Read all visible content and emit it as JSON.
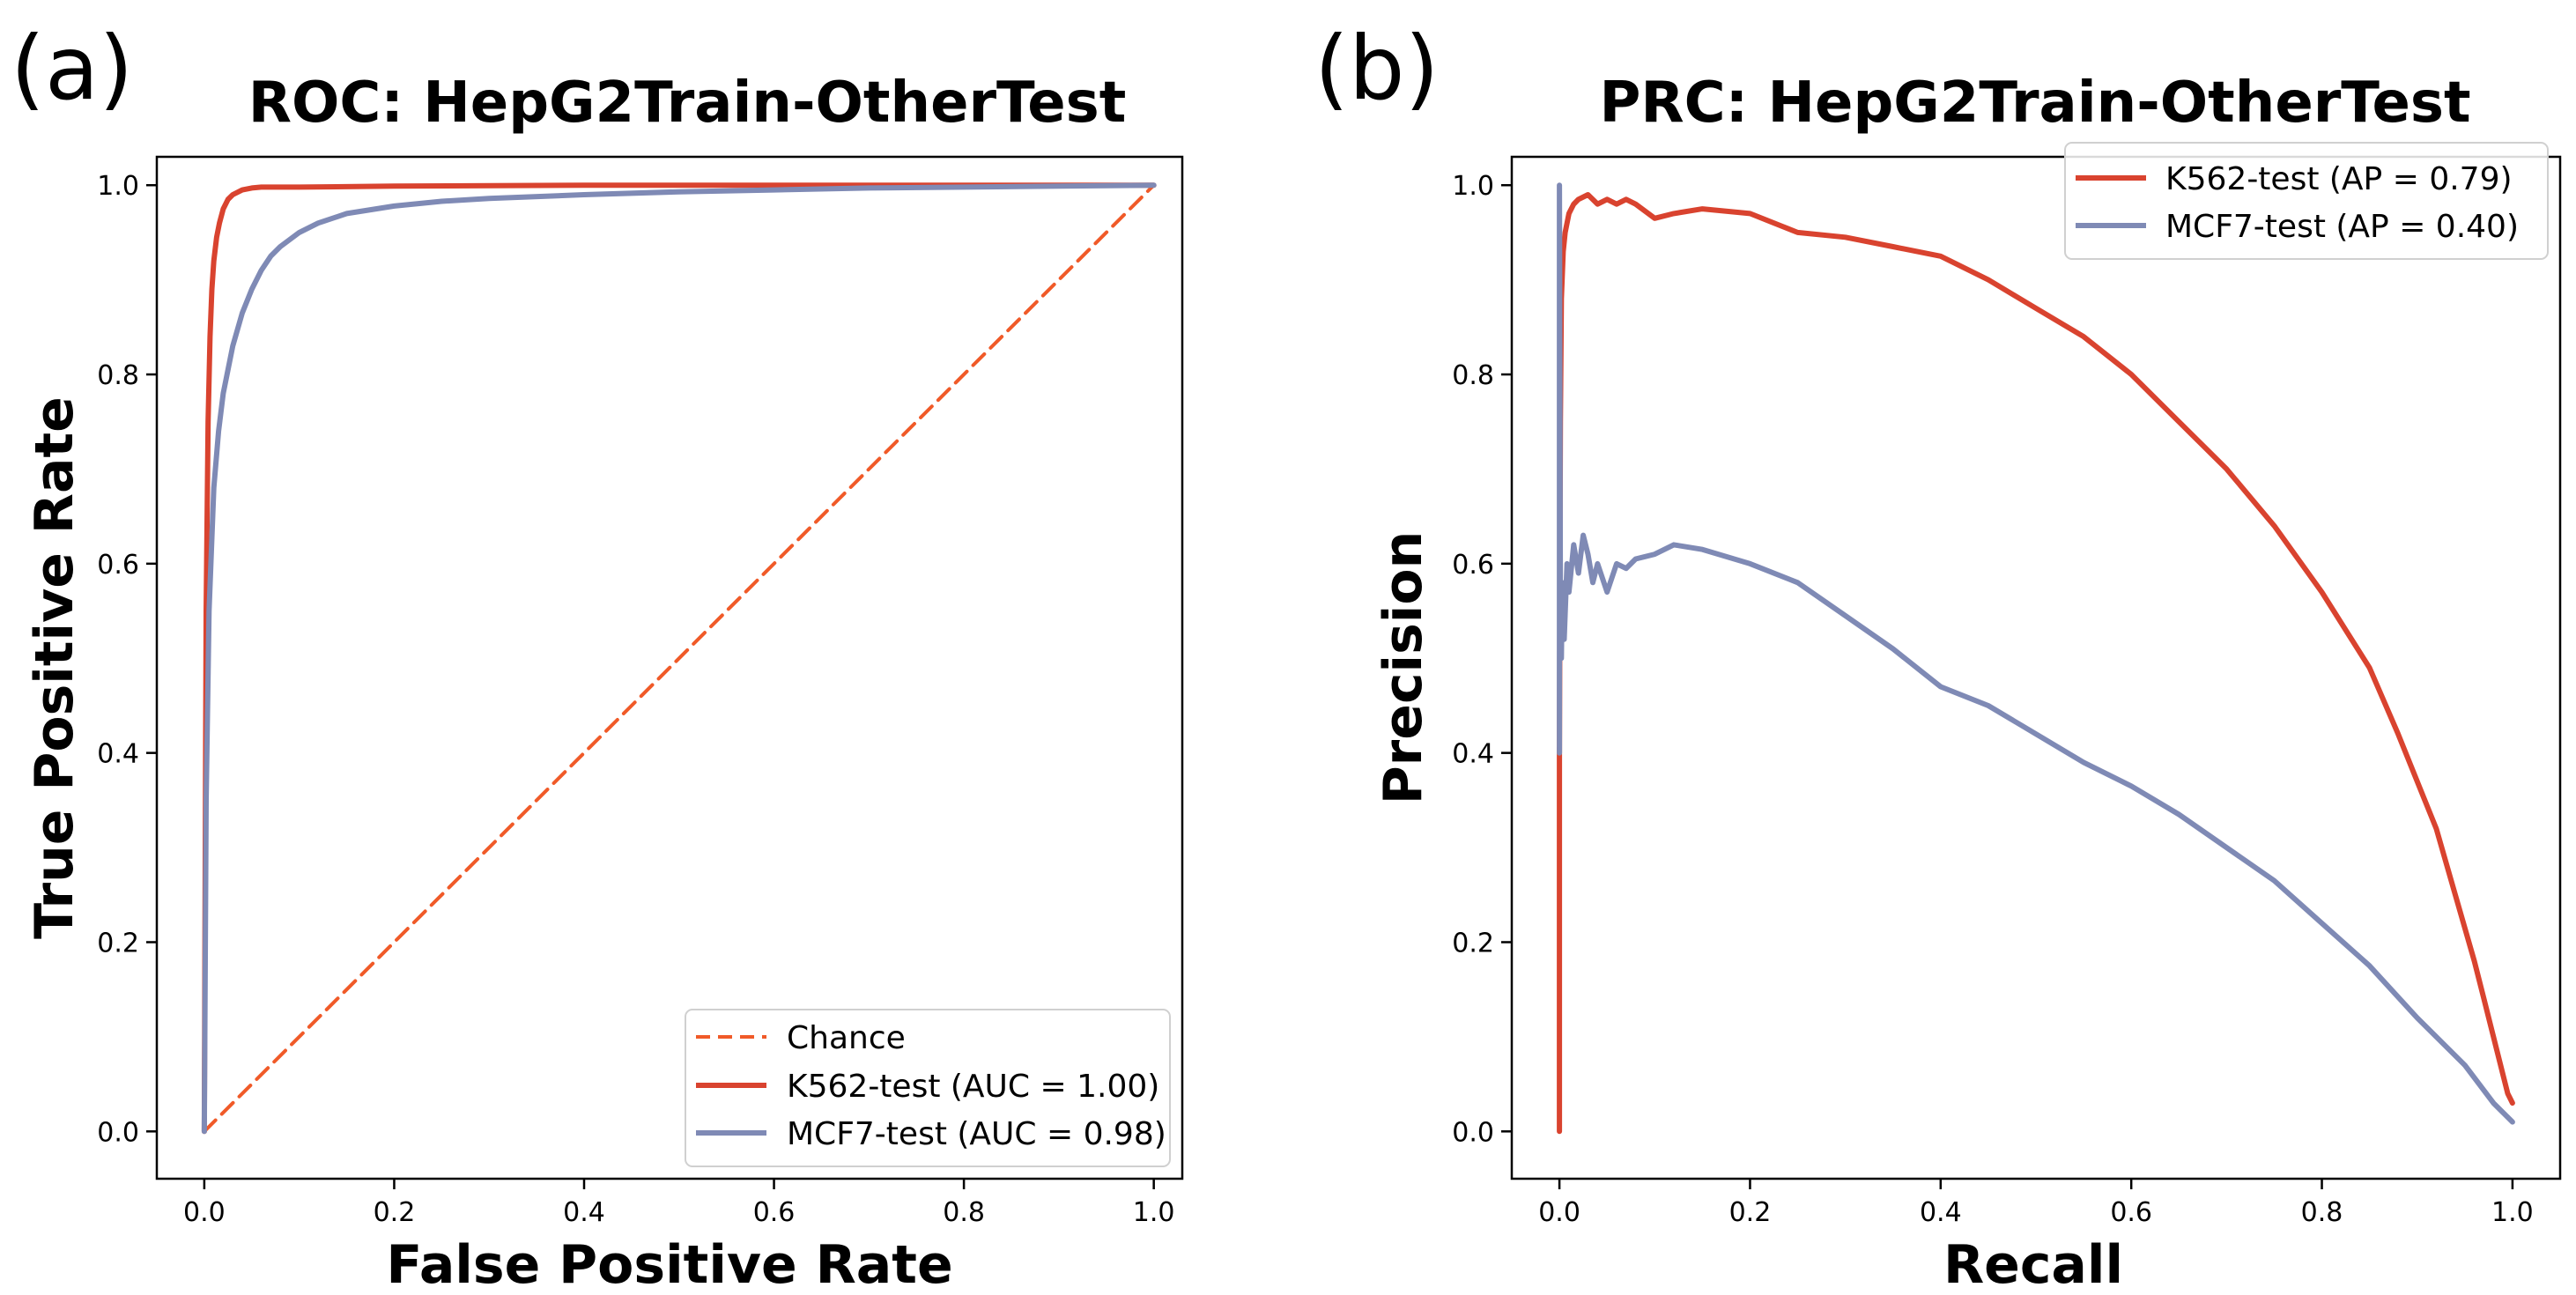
{
  "chart_data": [
    {
      "type": "line",
      "panel_label": "(a)",
      "title": "ROC: HepG2Train-OtherTest",
      "xlabel": "False Positive Rate",
      "ylabel": "True Positive Rate",
      "xlim": [
        -0.05,
        1.03
      ],
      "ylim": [
        -0.05,
        1.03
      ],
      "xticks": [
        0.0,
        0.2,
        0.4,
        0.6,
        0.8,
        1.0
      ],
      "yticks": [
        0.0,
        0.2,
        0.4,
        0.6,
        0.8,
        1.0
      ],
      "xtick_labels": [
        "0.0",
        "0.2",
        "0.4",
        "0.6",
        "0.8",
        "1.0"
      ],
      "ytick_labels": [
        "0.0",
        "0.2",
        "0.4",
        "0.6",
        "0.8",
        "1.0"
      ],
      "grid": false,
      "legend_position": "lower-right",
      "series": [
        {
          "name": "Chance",
          "color": "#f05a28",
          "dashed": true,
          "x": [
            0,
            1
          ],
          "y": [
            0,
            1
          ]
        },
        {
          "name": "K562-test (AUC = 1.00)",
          "color": "#d9432f",
          "dashed": false,
          "x": [
            0,
            0.001,
            0.002,
            0.004,
            0.006,
            0.008,
            0.01,
            0.013,
            0.016,
            0.02,
            0.025,
            0.03,
            0.04,
            0.05,
            0.06,
            0.08,
            0.1,
            0.2,
            0.4,
            0.6,
            0.8,
            1.0
          ],
          "y": [
            0,
            0.3,
            0.55,
            0.75,
            0.84,
            0.89,
            0.92,
            0.945,
            0.96,
            0.975,
            0.985,
            0.99,
            0.995,
            0.997,
            0.998,
            0.998,
            0.998,
            0.999,
            1.0,
            1.0,
            1.0,
            1.0
          ]
        },
        {
          "name": "MCF7-test (AUC = 0.98)",
          "color": "#7f8ab5",
          "dashed": false,
          "x": [
            0,
            0.002,
            0.005,
            0.01,
            0.015,
            0.02,
            0.03,
            0.04,
            0.05,
            0.06,
            0.07,
            0.08,
            0.1,
            0.12,
            0.15,
            0.2,
            0.25,
            0.3,
            0.4,
            0.5,
            0.6,
            0.7,
            0.8,
            0.9,
            1.0
          ],
          "y": [
            0,
            0.35,
            0.55,
            0.68,
            0.74,
            0.78,
            0.83,
            0.865,
            0.89,
            0.91,
            0.925,
            0.935,
            0.95,
            0.96,
            0.97,
            0.978,
            0.983,
            0.986,
            0.99,
            0.993,
            0.995,
            0.997,
            0.998,
            0.999,
            1.0
          ]
        }
      ]
    },
    {
      "type": "line",
      "panel_label": "(b)",
      "title": "PRC: HepG2Train-OtherTest",
      "xlabel": "Recall",
      "ylabel": "Precision",
      "xlim": [
        -0.05,
        1.05
      ],
      "ylim": [
        -0.05,
        1.03
      ],
      "xticks": [
        0.0,
        0.2,
        0.4,
        0.6,
        0.8,
        1.0
      ],
      "yticks": [
        0.0,
        0.2,
        0.4,
        0.6,
        0.8,
        1.0
      ],
      "xtick_labels": [
        "0.0",
        "0.2",
        "0.4",
        "0.6",
        "0.8",
        "1.0"
      ],
      "ytick_labels": [
        "0.0",
        "0.2",
        "0.4",
        "0.6",
        "0.8",
        "1.0"
      ],
      "grid": false,
      "legend_position": "upper-right",
      "series": [
        {
          "name": "K562-test (AP = 0.79)",
          "color": "#d9432f",
          "dashed": false,
          "x": [
            0,
            0,
            0.001,
            0.002,
            0.004,
            0.006,
            0.01,
            0.015,
            0.02,
            0.03,
            0.04,
            0.05,
            0.06,
            0.07,
            0.08,
            0.1,
            0.12,
            0.15,
            0.2,
            0.25,
            0.3,
            0.35,
            0.4,
            0.45,
            0.5,
            0.55,
            0.6,
            0.65,
            0.7,
            0.75,
            0.8,
            0.85,
            0.88,
            0.9,
            0.92,
            0.94,
            0.96,
            0.97,
            0.98,
            0.99,
            0.995,
            1.0
          ],
          "y": [
            0,
            0.4,
            0.75,
            0.88,
            0.93,
            0.95,
            0.97,
            0.98,
            0.985,
            0.99,
            0.98,
            0.985,
            0.98,
            0.985,
            0.98,
            0.965,
            0.97,
            0.975,
            0.97,
            0.95,
            0.945,
            0.935,
            0.925,
            0.9,
            0.87,
            0.84,
            0.8,
            0.75,
            0.7,
            0.64,
            0.57,
            0.49,
            0.42,
            0.37,
            0.32,
            0.25,
            0.18,
            0.14,
            0.1,
            0.06,
            0.04,
            0.03
          ]
        },
        {
          "name": "MCF7-test (AP = 0.40)",
          "color": "#7f8ab5",
          "dashed": false,
          "x": [
            0,
            0,
            0.001,
            0.002,
            0.003,
            0.005,
            0.008,
            0.01,
            0.015,
            0.02,
            0.025,
            0.03,
            0.035,
            0.04,
            0.05,
            0.06,
            0.07,
            0.08,
            0.1,
            0.12,
            0.15,
            0.2,
            0.25,
            0.3,
            0.35,
            0.4,
            0.45,
            0.5,
            0.55,
            0.6,
            0.65,
            0.7,
            0.75,
            0.8,
            0.85,
            0.9,
            0.95,
            0.98,
            1.0
          ],
          "y": [
            0.4,
            1.0,
            0.55,
            0.5,
            0.58,
            0.52,
            0.6,
            0.57,
            0.62,
            0.59,
            0.63,
            0.61,
            0.58,
            0.6,
            0.57,
            0.6,
            0.595,
            0.605,
            0.61,
            0.62,
            0.615,
            0.6,
            0.58,
            0.545,
            0.51,
            0.47,
            0.45,
            0.42,
            0.39,
            0.365,
            0.335,
            0.3,
            0.265,
            0.22,
            0.175,
            0.12,
            0.07,
            0.03,
            0.01
          ]
        }
      ]
    }
  ]
}
